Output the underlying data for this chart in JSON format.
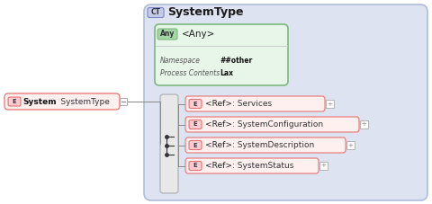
{
  "bg_color": "#ffffff",
  "outer_bg": "#dde3f0",
  "outer_border_color": "#b0bcd8",
  "system_type_label": "SystemType",
  "ct_label": "CT",
  "ct_badge_color": "#c5cae9",
  "ct_border_color": "#7986cb",
  "any_label": "<Any>",
  "any_badge": "Any",
  "any_box_color": "#e8f5e9",
  "any_badge_color": "#a5d6a7",
  "any_border_color": "#7cb87e",
  "namespace_label": "Namespace",
  "namespace_value": "##other",
  "process_label": "Process Contents",
  "process_value": "Lax",
  "info_box_color": "#ffffff",
  "info_border_color": "#cccccc",
  "system_element": "System",
  "system_type_ref": "  :  SystemType",
  "e_badge": "E",
  "e_badge_color": "#ffcdd2",
  "e_border_color": "#e57373",
  "system_box_color": "#fff0f0",
  "system_border_color": "#e57373",
  "ref_label": "<Ref>",
  "elements": [
    ": Services",
    ": SystemConfiguration",
    ": SystemDescription",
    ": SystemStatus"
  ],
  "elem_box_color": "#fff0f0",
  "elem_border_color": "#e57373",
  "seq_box_color": "#e8e8e8",
  "seq_border_color": "#aaaaaa",
  "connector_color": "#888888",
  "plus_color": "#aaaaaa",
  "line_color": "#888888"
}
